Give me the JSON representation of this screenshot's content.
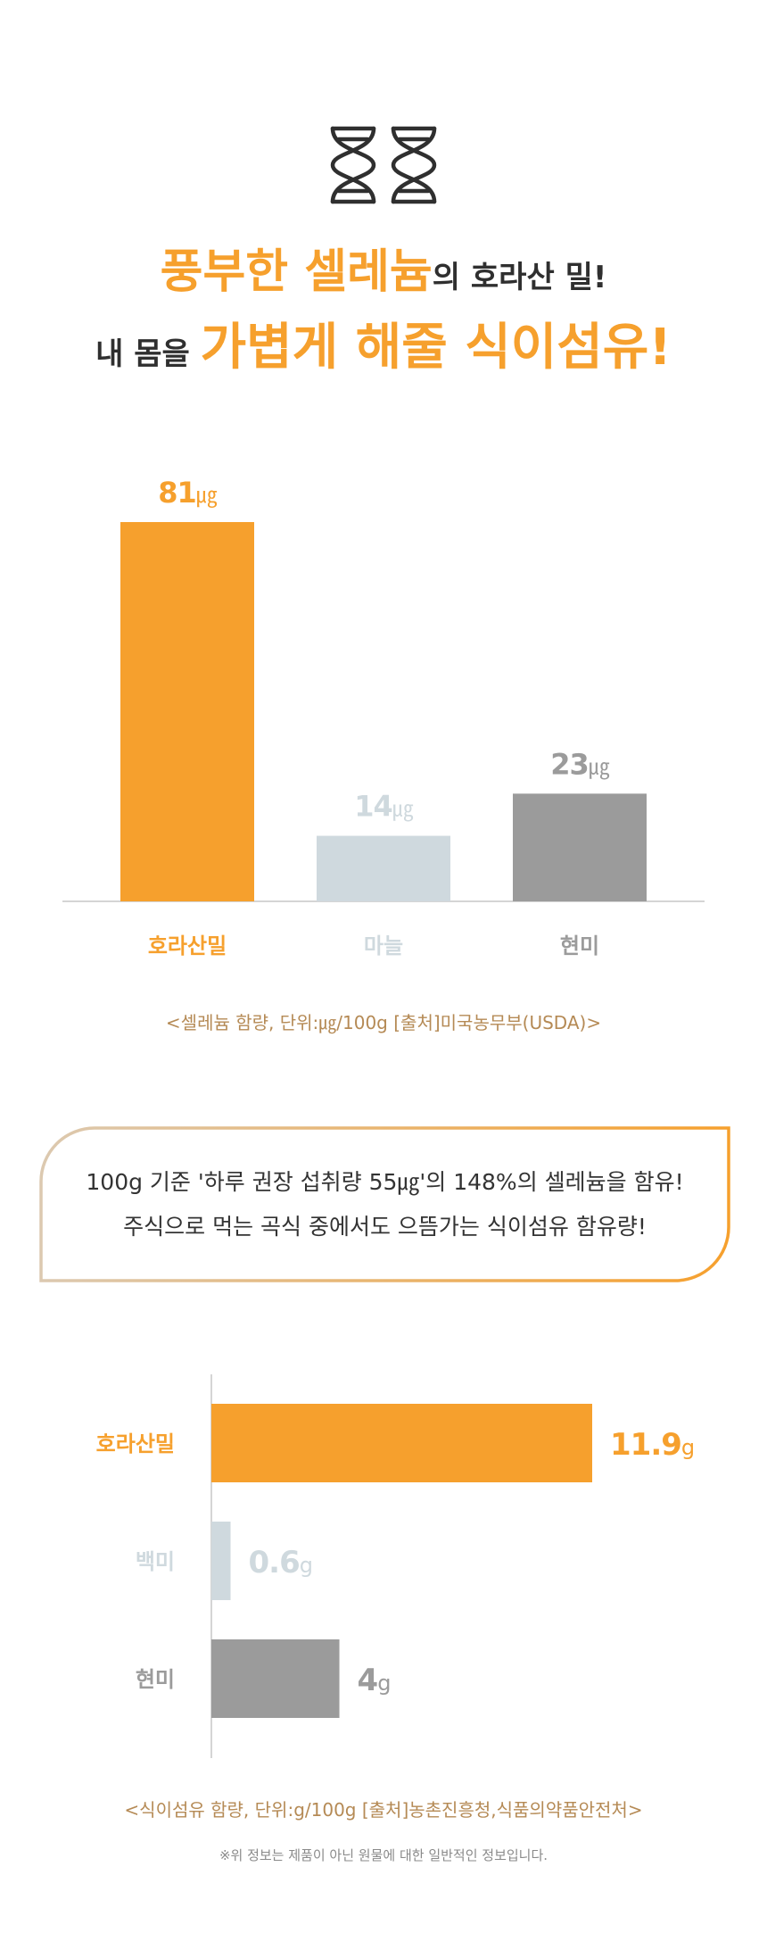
{
  "headline": {
    "line1_a": "풍부한 셀레늄",
    "line1_b": "의 호라산 밀!",
    "line2_a": "내 몸을 ",
    "line2_b": "가볍게 해줄 식이섬유!"
  },
  "colors": {
    "accent": "#f6a02d",
    "light": "#cfd9de",
    "gray": "#9b9b9b",
    "source": "#b58a55"
  },
  "icon": {
    "name": "dna-icon"
  },
  "chart_data": [
    {
      "type": "bar",
      "orientation": "vertical",
      "title": "",
      "unit": "㎍",
      "categories": [
        "호라산밀",
        "마늘",
        "현미"
      ],
      "values": [
        81,
        14,
        23
      ],
      "value_labels": [
        "81",
        "14",
        "23"
      ],
      "colors": [
        "#f6a02d",
        "#cfd9de",
        "#9b9b9b"
      ],
      "label_colors": [
        "#f6a02d",
        "#cfd9de",
        "#9b9b9b"
      ],
      "ymax": 81
    },
    {
      "type": "bar",
      "orientation": "horizontal",
      "title": "",
      "unit": "g",
      "categories": [
        "호라산밀",
        "백미",
        "현미"
      ],
      "values": [
        11.9,
        0.6,
        4
      ],
      "value_labels": [
        "11.9",
        "0.6",
        "4"
      ],
      "colors": [
        "#f6a02d",
        "#cfd9de",
        "#9b9b9b"
      ],
      "label_colors": [
        "#f6a02d",
        "#cfd9de",
        "#9b9b9b"
      ],
      "xmax": 11.9
    }
  ],
  "source1": "<셀레늄 함량, 단위:㎍/100g [출처]미국농무부(USDA)>",
  "callout": {
    "line1": "100g 기준 '하루 권장 섭취량 55㎍'의 148%의 셀레늄을 함유!",
    "line2": "주식으로 먹는 곡식 중에서도 으뜸가는 식이섬유 함유량!"
  },
  "source2": "<식이섬유 함량, 단위:g/100g [출처]농촌진흥청,식품의약품안전처>",
  "disclaimer": "※위 정보는 제품이 아닌 원물에 대한 일반적인 정보입니다."
}
